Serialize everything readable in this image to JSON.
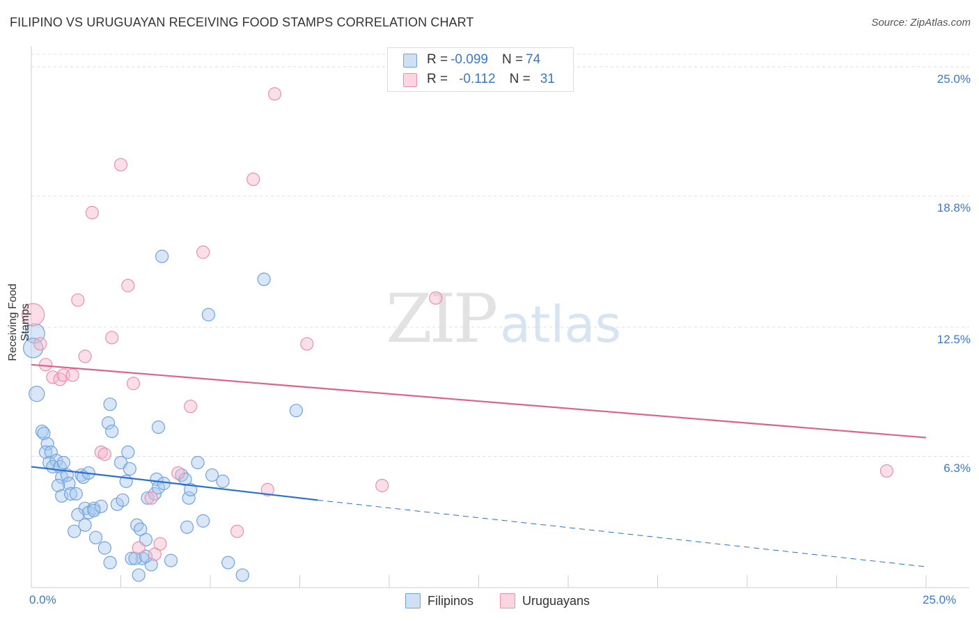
{
  "header": {
    "title": "FILIPINO VS URUGUAYAN RECEIVING FOOD STAMPS CORRELATION CHART",
    "source": "Source: ZipAtlas.com"
  },
  "watermark": {
    "zip": "ZIP",
    "atlas": "atlas"
  },
  "stats": {
    "rows": [
      {
        "r_label": "R = ",
        "r_value": "-0.099",
        "n_label": "N = ",
        "n_value": "74",
        "color": "#a8c8ee"
      },
      {
        "r_label": "R = ",
        "r_value": "-0.112",
        "n_label": "N = ",
        "n_value": "31",
        "color": "#f5b8cb"
      }
    ]
  },
  "legend": {
    "items": [
      {
        "label": "Filipinos",
        "color": "#a8c8ee"
      },
      {
        "label": "Uruguayans",
        "color": "#f5b8cb"
      }
    ]
  },
  "chart_data": {
    "type": "scatter",
    "title": "FILIPINO VS URUGUAYAN RECEIVING FOOD STAMPS CORRELATION CHART",
    "ylabel": "Receiving Food Stamps",
    "xlabel": "",
    "x_tick_labels": [
      "0.0%",
      "25.0%"
    ],
    "y_tick_labels": [
      "6.3%",
      "12.5%",
      "18.8%",
      "25.0%"
    ],
    "y_ticks": [
      6.3,
      12.5,
      18.8,
      25.0
    ],
    "xlim": [
      0,
      25
    ],
    "ylim": [
      0,
      25.6
    ],
    "grid": true,
    "series": [
      {
        "name": "Filipinos",
        "color": "#6fa3e0",
        "fill": "#a8c8ee",
        "trend": {
          "x0": 0,
          "y0": 5.8,
          "x1": 8.0,
          "y1": 4.2,
          "dash_to_x": 25,
          "dash_to_y": 1.0
        },
        "points": [
          [
            0.1,
            12.2,
            14
          ],
          [
            0.05,
            11.5,
            14
          ],
          [
            0.15,
            9.3,
            11
          ],
          [
            0.3,
            7.5,
            9
          ],
          [
            0.35,
            7.4,
            9
          ],
          [
            0.45,
            6.9,
            9
          ],
          [
            0.4,
            6.5,
            9
          ],
          [
            0.55,
            6.5,
            9
          ],
          [
            0.5,
            6.0,
            9
          ],
          [
            0.7,
            6.1,
            9
          ],
          [
            0.6,
            5.8,
            9
          ],
          [
            0.8,
            5.8,
            9
          ],
          [
            0.9,
            6.0,
            9
          ],
          [
            0.85,
            5.3,
            9
          ],
          [
            1.0,
            5.4,
            9
          ],
          [
            1.05,
            5.0,
            9
          ],
          [
            0.75,
            4.9,
            9
          ],
          [
            0.85,
            4.4,
            9
          ],
          [
            1.1,
            4.5,
            9
          ],
          [
            1.25,
            4.5,
            9
          ],
          [
            1.4,
            5.4,
            9
          ],
          [
            1.45,
            5.3,
            9
          ],
          [
            1.6,
            5.5,
            9
          ],
          [
            1.5,
            3.8,
            9
          ],
          [
            1.6,
            3.6,
            9
          ],
          [
            1.75,
            3.8,
            9
          ],
          [
            1.3,
            3.5,
            9
          ],
          [
            1.5,
            3.0,
            9
          ],
          [
            1.2,
            2.7,
            9
          ],
          [
            1.75,
            3.7,
            9
          ],
          [
            1.95,
            3.9,
            9
          ],
          [
            1.8,
            2.4,
            9
          ],
          [
            2.05,
            1.9,
            9
          ],
          [
            2.2,
            1.2,
            9
          ],
          [
            2.4,
            4.0,
            9
          ],
          [
            2.55,
            4.2,
            9
          ],
          [
            2.5,
            6.0,
            9
          ],
          [
            2.65,
            5.1,
            9
          ],
          [
            2.75,
            5.7,
            9
          ],
          [
            2.7,
            6.5,
            9
          ],
          [
            2.15,
            7.9,
            9
          ],
          [
            2.25,
            7.5,
            9
          ],
          [
            2.2,
            8.8,
            9
          ],
          [
            2.95,
            3.0,
            9
          ],
          [
            3.05,
            2.8,
            9
          ],
          [
            3.2,
            2.3,
            9
          ],
          [
            3.1,
            1.4,
            9
          ],
          [
            2.8,
            1.4,
            9
          ],
          [
            2.9,
            1.4,
            9
          ],
          [
            3.0,
            0.6,
            9
          ],
          [
            3.35,
            1.1,
            9
          ],
          [
            3.25,
            4.3,
            9
          ],
          [
            3.45,
            4.5,
            9
          ],
          [
            3.5,
            5.2,
            9
          ],
          [
            3.55,
            4.8,
            9
          ],
          [
            3.7,
            5.0,
            9
          ],
          [
            3.55,
            7.7,
            9
          ],
          [
            3.65,
            15.9,
            9
          ],
          [
            3.9,
            1.3,
            9
          ],
          [
            4.2,
            5.4,
            9
          ],
          [
            4.3,
            5.2,
            9
          ],
          [
            4.4,
            4.3,
            9
          ],
          [
            4.45,
            4.7,
            9
          ],
          [
            4.35,
            2.9,
            9
          ],
          [
            4.65,
            6.0,
            9
          ],
          [
            4.8,
            3.2,
            9
          ],
          [
            4.95,
            13.1,
            9
          ],
          [
            5.05,
            5.4,
            9
          ],
          [
            5.35,
            5.1,
            9
          ],
          [
            5.5,
            1.2,
            9
          ],
          [
            5.9,
            0.6,
            9
          ],
          [
            6.5,
            14.8,
            9
          ],
          [
            7.4,
            8.5,
            9
          ],
          [
            3.2,
            1.5,
            9
          ]
        ]
      },
      {
        "name": "Uruguayans",
        "color": "#e890ae",
        "fill": "#f5b8cb",
        "trend": {
          "x0": 0,
          "y0": 10.7,
          "x1": 25,
          "y1": 7.2
        },
        "points": [
          [
            0.05,
            13.1,
            16
          ],
          [
            0.25,
            11.7,
            9
          ],
          [
            0.4,
            10.7,
            9
          ],
          [
            0.6,
            10.1,
            9
          ],
          [
            0.8,
            10.0,
            9
          ],
          [
            0.9,
            10.2,
            9
          ],
          [
            1.15,
            10.2,
            9
          ],
          [
            1.3,
            13.8,
            9
          ],
          [
            1.5,
            11.1,
            9
          ],
          [
            1.7,
            18.0,
            9
          ],
          [
            1.95,
            6.5,
            9
          ],
          [
            2.05,
            6.4,
            9
          ],
          [
            2.25,
            12.0,
            9
          ],
          [
            2.5,
            20.3,
            9
          ],
          [
            2.7,
            14.5,
            9
          ],
          [
            2.85,
            9.8,
            9
          ],
          [
            3.0,
            1.9,
            9
          ],
          [
            3.35,
            4.3,
            9
          ],
          [
            3.45,
            1.6,
            9
          ],
          [
            3.6,
            2.1,
            9
          ],
          [
            4.1,
            5.5,
            9
          ],
          [
            4.45,
            8.7,
            9
          ],
          [
            4.8,
            16.1,
            9
          ],
          [
            5.75,
            2.7,
            9
          ],
          [
            6.2,
            19.6,
            9
          ],
          [
            6.6,
            4.7,
            9
          ],
          [
            6.8,
            23.7,
            9
          ],
          [
            7.7,
            11.7,
            9
          ],
          [
            9.8,
            4.9,
            9
          ],
          [
            11.3,
            13.9,
            9
          ],
          [
            23.9,
            5.6,
            9
          ]
        ]
      }
    ]
  }
}
